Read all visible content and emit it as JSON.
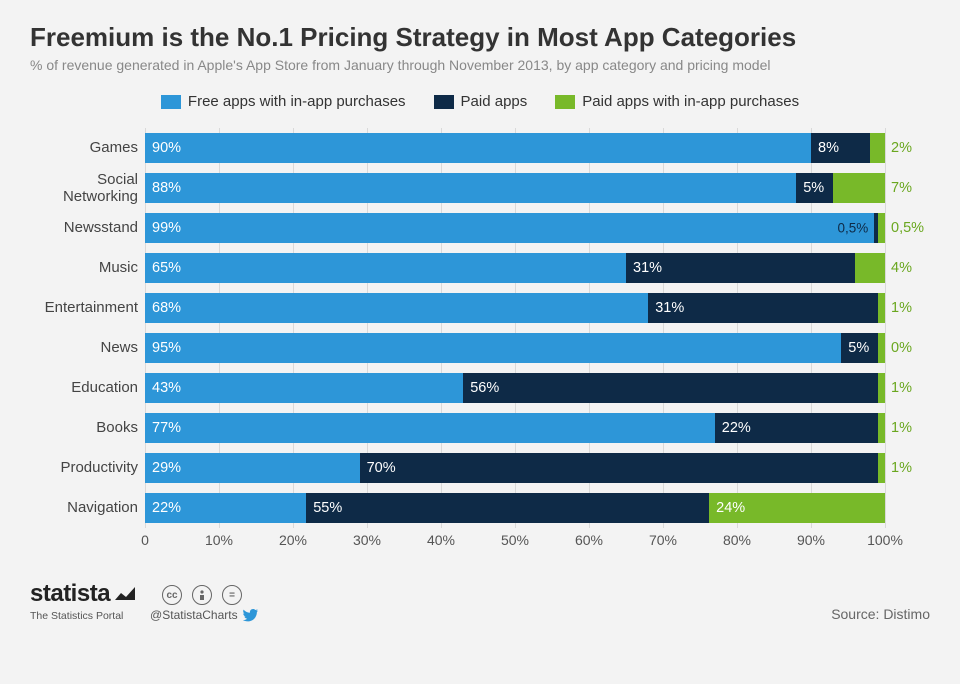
{
  "title": "Freemium is the No.1 Pricing Strategy in Most App Categories",
  "subtitle": "% of revenue generated in Apple's App Store from January through November 2013, by app category and pricing model",
  "colors": {
    "blue": "#2d96d8",
    "navy": "#0e2a47",
    "green": "#78bی29",
    "green_hex": "#78b929",
    "green_text": "#6aa71f",
    "bg": "#f3f3f3",
    "grid": "#d9d9d9"
  },
  "legend": [
    {
      "label": "Free apps with in-app purchases",
      "color": "#2d96d8"
    },
    {
      "label": "Paid apps",
      "color": "#0e2a47"
    },
    {
      "label": "Paid apps with in-app purchases",
      "color": "#78b929"
    }
  ],
  "xaxis": {
    "min": 0,
    "max": 100,
    "step": 10,
    "suffix": "%"
  },
  "categories": [
    {
      "name": "Games",
      "values": [
        90,
        8,
        2
      ],
      "labels": [
        "90%",
        "8%",
        "2%"
      ]
    },
    {
      "name": "Social Networking",
      "values": [
        88,
        5,
        7
      ],
      "labels": [
        "88%",
        "5%",
        "7%"
      ]
    },
    {
      "name": "Newsstand",
      "values": [
        99,
        0.5,
        0.5
      ],
      "labels": [
        "99%",
        "0,5%",
        "0,5%"
      ]
    },
    {
      "name": "Music",
      "values": [
        65,
        31,
        4
      ],
      "labels": [
        "65%",
        "31%",
        "4%"
      ]
    },
    {
      "name": "Entertainment",
      "values": [
        68,
        31,
        1
      ],
      "labels": [
        "68%",
        "31%",
        "1%"
      ]
    },
    {
      "name": "News",
      "values": [
        95,
        5,
        0
      ],
      "labels": [
        "95%",
        "5%",
        "0%"
      ]
    },
    {
      "name": "Education",
      "values": [
        43,
        56,
        1
      ],
      "labels": [
        "43%",
        "56%",
        "1%"
      ]
    },
    {
      "name": "Books",
      "values": [
        77,
        22,
        1
      ],
      "labels": [
        "77%",
        "22%",
        "1%"
      ]
    },
    {
      "name": "Productivity",
      "values": [
        29,
        70,
        1
      ],
      "labels": [
        "29%",
        "70%",
        "1%"
      ]
    },
    {
      "name": "Navigation",
      "values": [
        22,
        55,
        24
      ],
      "labels": [
        "22%",
        "55%",
        "24%"
      ],
      "green_inside": true
    }
  ],
  "footer": {
    "brand": "statista",
    "brand_sub": "The Statistics Portal",
    "handle": "@StatistaCharts",
    "source": "Source: Distimo"
  }
}
